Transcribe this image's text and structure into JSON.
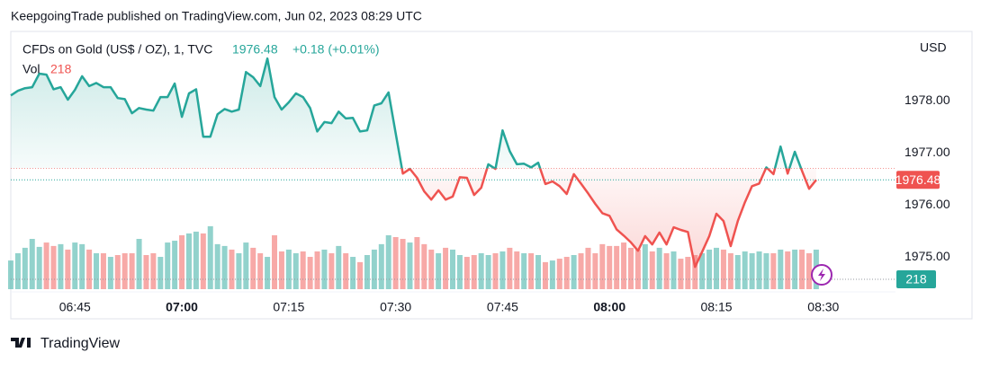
{
  "header": {
    "title": "KeepgoingTrade published on TradingView.com, Jun 02, 2023 08:29 UTC"
  },
  "footer": {
    "brand": "TradingView"
  },
  "chart_data": {
    "type": "baseline",
    "title": "CFDs on Gold (US$ / OZ), 1, TVC",
    "change": "+0.18 (+0.01%)",
    "y_axis_label": "USD",
    "baseline": 1976.7,
    "up_color": "#26a69a",
    "down_color": "#ef5350",
    "grid": false,
    "x": [
      "06:36",
      "06:37",
      "06:38",
      "06:39",
      "06:40",
      "06:41",
      "06:42",
      "06:43",
      "06:44",
      "06:45",
      "06:46",
      "06:47",
      "06:48",
      "06:49",
      "06:50",
      "06:51",
      "06:52",
      "06:53",
      "06:54",
      "06:55",
      "06:56",
      "06:57",
      "06:58",
      "06:59",
      "07:00",
      "07:01",
      "07:02",
      "07:03",
      "07:04",
      "07:05",
      "07:06",
      "07:07",
      "07:08",
      "07:09",
      "07:10",
      "07:11",
      "07:12",
      "07:13",
      "07:14",
      "07:15",
      "07:16",
      "07:17",
      "07:18",
      "07:19",
      "07:20",
      "07:21",
      "07:22",
      "07:23",
      "07:24",
      "07:25",
      "07:26",
      "07:27",
      "07:28",
      "07:29",
      "07:30",
      "07:31",
      "07:32",
      "07:33",
      "07:34",
      "07:35",
      "07:36",
      "07:37",
      "07:38",
      "07:39",
      "07:40",
      "07:41",
      "07:42",
      "07:43",
      "07:44",
      "07:45",
      "07:46",
      "07:47",
      "07:48",
      "07:49",
      "07:50",
      "07:51",
      "07:52",
      "07:53",
      "07:54",
      "07:55",
      "07:56",
      "07:57",
      "07:58",
      "07:59",
      "08:00",
      "08:01",
      "08:02",
      "08:03",
      "08:04",
      "08:05",
      "08:06",
      "08:07",
      "08:08",
      "08:09",
      "08:10",
      "08:11",
      "08:12",
      "08:13",
      "08:14",
      "08:15",
      "08:16",
      "08:17",
      "08:18",
      "08:19",
      "08:20",
      "08:21",
      "08:22",
      "08:23",
      "08:24",
      "08:25",
      "08:26",
      "08:27",
      "08:28",
      "08:29"
    ],
    "xlim": [
      "06:36",
      "08:40"
    ],
    "xticks": [
      "06:45",
      "07:00",
      "07:15",
      "07:30",
      "07:45",
      "08:00",
      "08:15",
      "08:30"
    ],
    "ylim": [
      1974.33,
      1979.33
    ],
    "yticks": [
      {
        "value": 1975,
        "label": "1975.00"
      },
      {
        "value": 1976,
        "label": "1976.00"
      },
      {
        "value": 1977,
        "label": "1977.00"
      },
      {
        "value": 1978,
        "label": "1978.00"
      }
    ],
    "y2lim": [
      0,
      1435
    ],
    "series": [
      {
        "name": "Price",
        "values": [
          1978.1,
          1978.19,
          1978.24,
          1978.26,
          1978.52,
          1978.5,
          1978.22,
          1978.26,
          1978.02,
          1978.21,
          1978.47,
          1978.28,
          1978.34,
          1978.26,
          1978.26,
          1978.05,
          1978.03,
          1977.76,
          1977.86,
          1977.83,
          1977.81,
          1978.07,
          1978.07,
          1978.33,
          1977.69,
          1978.14,
          1978.22,
          1977.31,
          1977.31,
          1977.74,
          1977.84,
          1977.79,
          1977.83,
          1978.55,
          1978.45,
          1978.28,
          1978.81,
          1978.07,
          1977.83,
          1977.97,
          1978.14,
          1978.07,
          1977.86,
          1977.41,
          1977.59,
          1977.57,
          1977.79,
          1977.66,
          1977.67,
          1977.41,
          1977.43,
          1977.91,
          1977.95,
          1978.16,
          1977.38,
          1976.6,
          1976.69,
          1976.52,
          1976.26,
          1976.1,
          1976.28,
          1976.1,
          1976.16,
          1976.53,
          1976.52,
          1976.19,
          1976.33,
          1976.78,
          1976.69,
          1977.43,
          1977.03,
          1976.78,
          1976.79,
          1976.72,
          1976.81,
          1976.4,
          1976.45,
          1976.36,
          1976.21,
          1976.59,
          1976.41,
          1976.22,
          1976.02,
          1975.84,
          1975.79,
          1975.53,
          1975.41,
          1975.28,
          1975.12,
          1975.4,
          1975.24,
          1975.47,
          1975.24,
          1975.57,
          1975.52,
          1975.48,
          1974.81,
          1975.1,
          1975.4,
          1975.83,
          1975.69,
          1975.21,
          1975.69,
          1976.05,
          1976.36,
          1976.41,
          1976.72,
          1976.59,
          1977.12,
          1976.6,
          1977.02,
          1976.66,
          1976.31,
          1976.48
        ]
      },
      {
        "name": "Vol",
        "axis": "y2",
        "values": [
          158,
          198,
          228,
          277,
          233,
          257,
          238,
          248,
          218,
          257,
          248,
          218,
          198,
          198,
          178,
          188,
          198,
          198,
          277,
          188,
          198,
          178,
          257,
          267,
          297,
          307,
          317,
          307,
          347,
          248,
          238,
          218,
          198,
          257,
          228,
          198,
          178,
          297,
          208,
          218,
          198,
          208,
          178,
          208,
          218,
          198,
          238,
          198,
          178,
          149,
          188,
          218,
          248,
          297,
          287,
          277,
          257,
          287,
          248,
          218,
          198,
          228,
          218,
          188,
          178,
          188,
          198,
          188,
          198,
          208,
          228,
          208,
          198,
          198,
          188,
          149,
          158,
          168,
          178,
          188,
          198,
          228,
          198,
          248,
          238,
          238,
          257,
          228,
          218,
          248,
          208,
          228,
          198,
          208,
          168,
          178,
          188,
          198,
          218,
          228,
          218,
          198,
          188,
          208,
          198,
          208,
          198,
          198,
          218,
          208,
          218,
          218,
          198,
          218
        ]
      }
    ]
  }
}
